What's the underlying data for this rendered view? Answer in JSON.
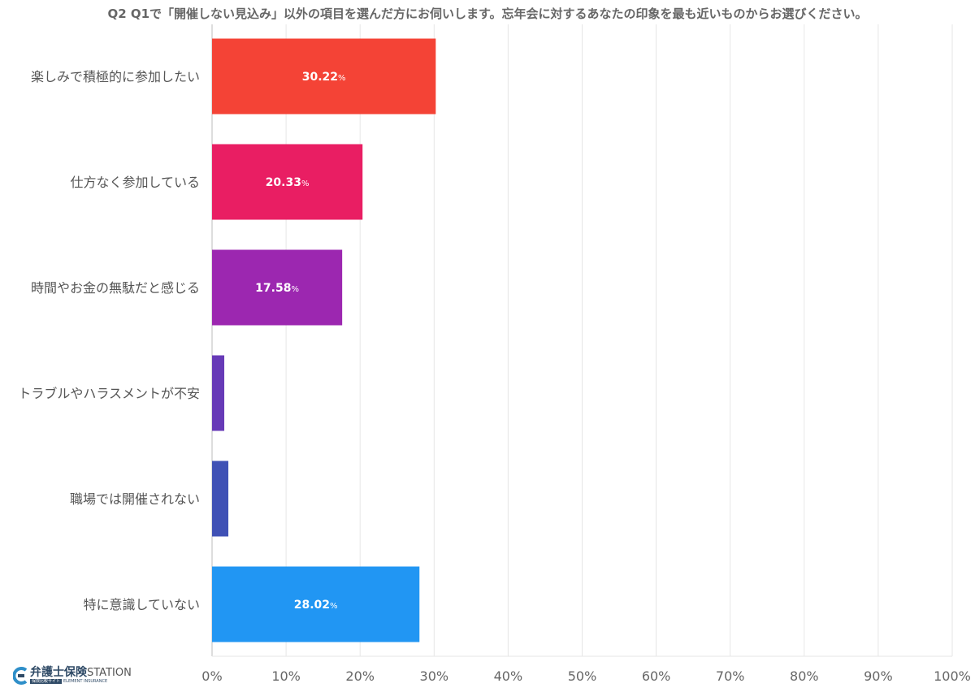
{
  "chart_data": {
    "type": "bar",
    "orientation": "horizontal",
    "title": "Q2 Q1で「開催しない見込み」以外の項目を選んだ方にお伺いします。忘年会に対するあなたの印象を最も近いものからお選びください。",
    "categories": [
      "楽しみで積極的に参加したい",
      "仕方なく参加している",
      "時間やお金の無駄だと感じる",
      "トラブルやハラスメントが不安",
      "職場では開催されない",
      "特に意識していない"
    ],
    "values": [
      30.22,
      20.33,
      17.58,
      1.65,
      2.2,
      28.02
    ],
    "data_labels": [
      "30.22",
      "20.33",
      "17.58",
      "",
      "",
      "28.02"
    ],
    "data_label_unit": "%",
    "colors": [
      "#f44336",
      "#e91e63",
      "#9c27b0",
      "#673ab7",
      "#3f51b5",
      "#2196f3"
    ],
    "xlim": [
      0,
      100
    ],
    "x_ticks": [
      "0%",
      "10%",
      "20%",
      "30%",
      "40%",
      "50%",
      "60%",
      "70%",
      "80%",
      "90%",
      "100%"
    ],
    "grid": true,
    "legend": "none"
  },
  "logo": {
    "main": "弁護士保険",
    "station": "STATION",
    "sub_box": "保険比較サイト",
    "sub_text": "ELEMENT INSURANCE"
  }
}
